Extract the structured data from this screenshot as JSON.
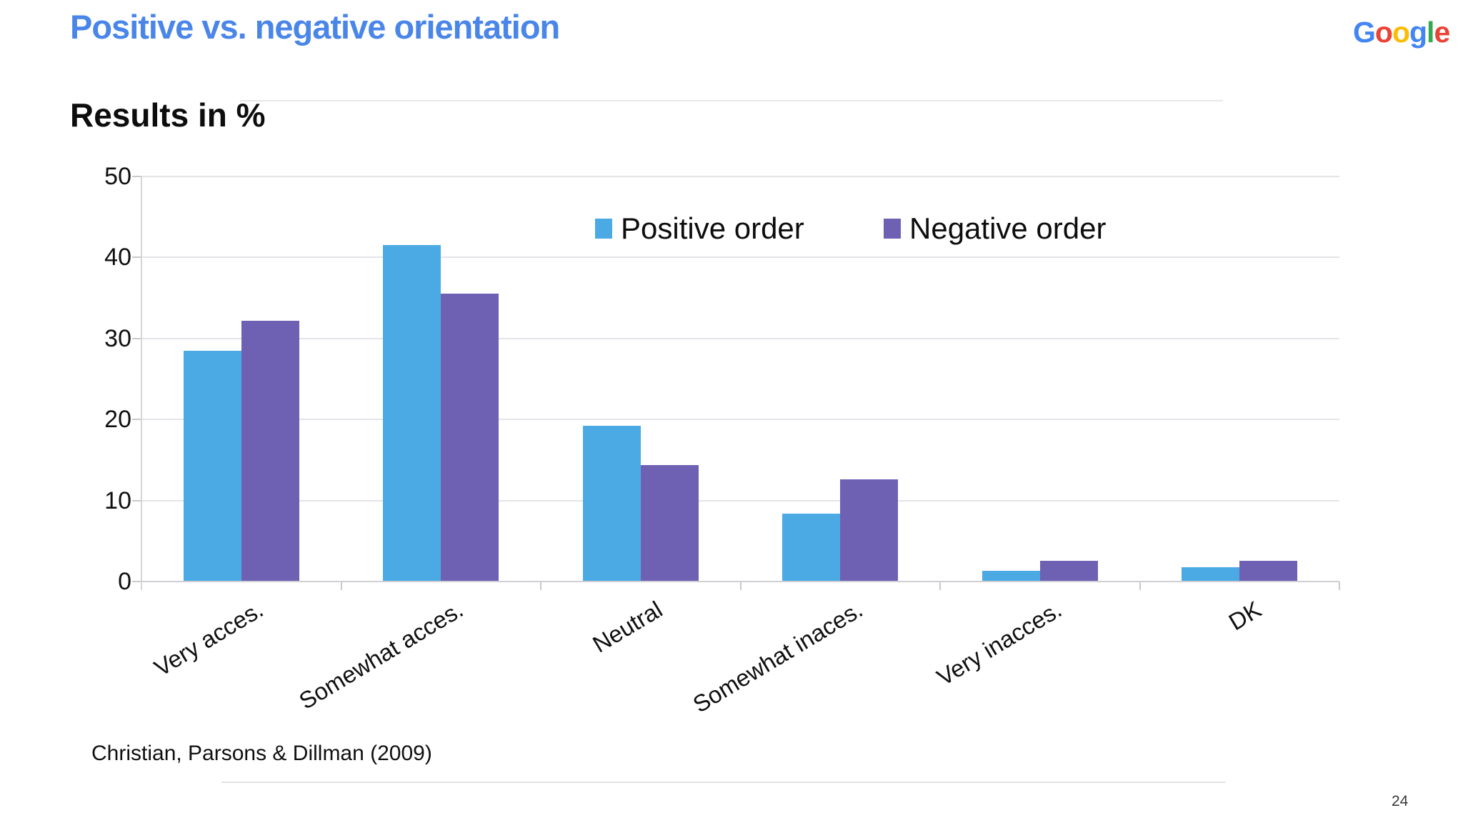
{
  "slide": {
    "title": "Positive vs. negative orientation",
    "title_color": "#4a86e8",
    "chart_heading": "Results in %",
    "citation": "Christian, Parsons & Dillman (2009)",
    "page_number": "24",
    "logo": {
      "name": "google-logo",
      "letters": [
        {
          "ch": "G",
          "color": "#4285F4"
        },
        {
          "ch": "o",
          "color": "#EA4335"
        },
        {
          "ch": "o",
          "color": "#FBBC05"
        },
        {
          "ch": "g",
          "color": "#4285F4"
        },
        {
          "ch": "l",
          "color": "#34A853"
        },
        {
          "ch": "e",
          "color": "#EA4335"
        }
      ]
    }
  },
  "chart_data": {
    "type": "bar",
    "title": "Results in %",
    "categories": [
      "Very acces.",
      "Somewhat acces.",
      "Neutral",
      "Somewhat inaces.",
      "Very inacces.",
      "DK"
    ],
    "series": [
      {
        "name": "Positive order",
        "color": "#4baae3",
        "values": [
          28.5,
          41.5,
          19.2,
          8.4,
          1.3,
          1.8
        ]
      },
      {
        "name": "Negative order",
        "color": "#6e61b4",
        "values": [
          32.2,
          35.5,
          14.4,
          12.6,
          2.6,
          2.6
        ]
      }
    ],
    "xlabel": "",
    "ylabel": "",
    "ylim": [
      0,
      50
    ],
    "yticks": [
      0,
      10,
      20,
      30,
      40,
      50
    ],
    "grid": true,
    "legend_position": "top-inside"
  }
}
